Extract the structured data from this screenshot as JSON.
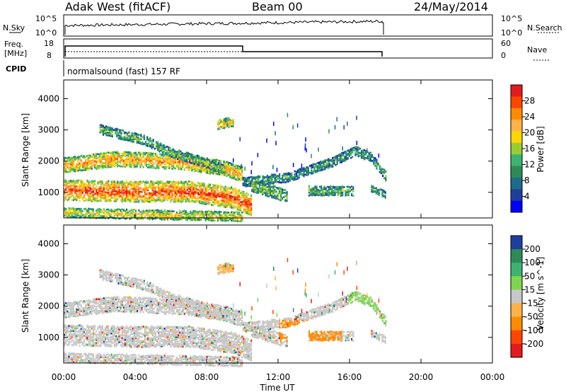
{
  "header": {
    "station": "Adak West (fitACF)",
    "beam": "Beam 00",
    "date": "24/May/2014"
  },
  "noise_panel": {
    "left_label": "N.Sky",
    "right_label": "N.Search",
    "y_ticks_left": [
      "10^5",
      "10^0"
    ],
    "y_ticks_right": [
      "10^5",
      "10^0"
    ]
  },
  "freq_panel": {
    "left_label_1": "Freq.",
    "left_label_2": "[MHz]",
    "right_label": "Nave",
    "y_ticks_left": [
      "18",
      "8"
    ],
    "y_ticks_right": [
      "60",
      "0"
    ]
  },
  "cpid_panel": {
    "left_label": "CPID",
    "mode_text": "normalsound (fast) 157 RF"
  },
  "chart_data": [
    {
      "type": "heatmap",
      "title": "",
      "parameter": "Power",
      "xlabel": "",
      "ylabel": "Slant Range [km]",
      "xlim": [
        0,
        24
      ],
      "ylim": [
        180,
        4600
      ],
      "x_ticks": [
        "00:00",
        "04:00",
        "08:00",
        "12:00",
        "16:00",
        "20:00",
        "00:00"
      ],
      "y_ticks": [
        1000,
        2000,
        3000,
        4000
      ],
      "colorbar": {
        "label": "Power [dB]",
        "ticks": [
          "28",
          "24",
          "20",
          "16",
          "12",
          "8",
          "4"
        ],
        "colors": [
          "#e41a1c",
          "#ff4500",
          "#ff8c00",
          "#ffb347",
          "#ffd700",
          "#9acd32",
          "#3cb371",
          "#2e8b57",
          "#1e6b8c",
          "#1f3f9f",
          "#0000ff"
        ]
      },
      "echo_bands": [
        {
          "t": [
            0.0,
            3.0,
            6.5,
            9.0,
            10.0
          ],
          "range": [
            1900,
            2100,
            2000,
            1800,
            1600
          ],
          "width": 250,
          "level": 0.55
        },
        {
          "t": [
            2.0,
            4.5,
            6.0,
            7.5,
            9.0
          ],
          "range": [
            3050,
            2700,
            2300,
            2050,
            1750
          ],
          "width": 170,
          "level": 0.3
        },
        {
          "t": [
            10.0,
            12.5,
            15.0,
            16.3,
            17.2,
            18.0
          ],
          "range": [
            1350,
            1500,
            2000,
            2350,
            2150,
            1550
          ],
          "width": 190,
          "level": 0.25
        },
        {
          "t": [
            0.0,
            4.0,
            7.0,
            9.5,
            10.5
          ],
          "range": [
            1100,
            1050,
            1050,
            850,
            600
          ],
          "width": 370,
          "level": 0.68
        },
        {
          "t": [
            10.5,
            12.5
          ],
          "range": [
            1250,
            900
          ],
          "width": 220,
          "level": 0.35
        },
        {
          "t": [
            13.7,
            16.2
          ],
          "range": [
            1080,
            1070
          ],
          "width": 150,
          "level": 0.3
        },
        {
          "t": [
            17.2,
            18.0
          ],
          "range": [
            1150,
            950
          ],
          "width": 130,
          "level": 0.3
        },
        {
          "t": [
            8.6,
            9.5
          ],
          "range": [
            3200,
            3300
          ],
          "width": 170,
          "level": 0.5
        },
        {
          "t": [
            0.0,
            10.0
          ],
          "range": [
            380,
            250
          ],
          "width": 160,
          "level": 0.45
        }
      ]
    },
    {
      "type": "heatmap",
      "title": "",
      "parameter": "Velocity",
      "xlabel": "Time UT",
      "ylabel": "Slant Range [km]",
      "xlim": [
        0,
        24
      ],
      "ylim": [
        180,
        4600
      ],
      "x_ticks": [
        "00:00",
        "04:00",
        "08:00",
        "12:00",
        "16:00",
        "20:00",
        "00:00"
      ],
      "y_ticks": [
        1000,
        2000,
        3000,
        4000
      ],
      "colorbar": {
        "label": "Velocity [m s^-1]",
        "ticks": [
          "200",
          "100",
          "50",
          "15",
          "-15",
          "-50",
          "-100",
          "-200"
        ],
        "colors": [
          "#1f3f9f",
          "#2e8b57",
          "#3cb371",
          "#7fd54b",
          "#c8c8c8",
          "#ffb347",
          "#ff8c00",
          "#ff4500",
          "#e41a1c"
        ]
      },
      "velocity_overrides": [
        {
          "t": [
            12.0,
            15.5
          ],
          "range": [
            900,
            1600
          ],
          "color": "#ff8c00"
        },
        {
          "t": [
            15.8,
            18.0
          ],
          "range": [
            1500,
            2500
          ],
          "color": "#7fd54b"
        },
        {
          "t": [
            8.6,
            9.6
          ],
          "range": [
            3100,
            3400
          ],
          "color": "#ffb347"
        }
      ]
    }
  ]
}
